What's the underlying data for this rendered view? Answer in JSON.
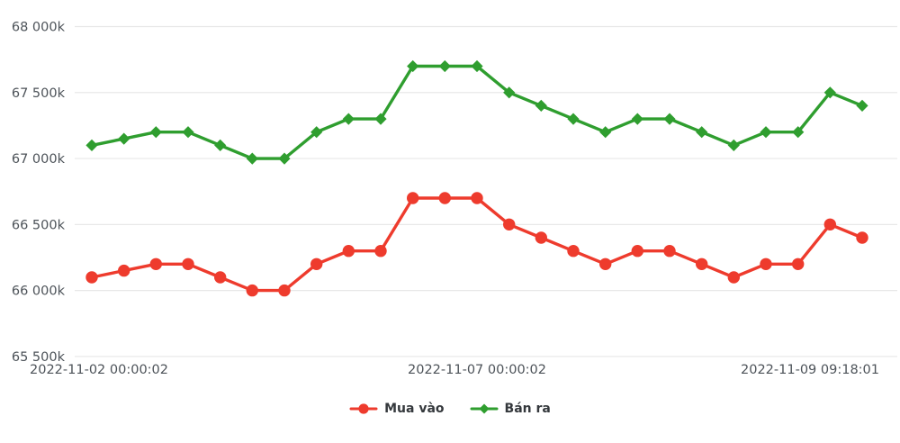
{
  "chart_data": {
    "type": "line",
    "x_labels": [
      "2022-11-02 00:00:02",
      "2022-11-07 00:00:02",
      "2022-11-09 09:18:01"
    ],
    "y_ticks": [
      {
        "label": "68 000k",
        "value": 68000
      },
      {
        "label": "67 500k",
        "value": 67500
      },
      {
        "label": "67 000k",
        "value": 67000
      },
      {
        "label": "66 500k",
        "value": 66500
      },
      {
        "label": "66 000k",
        "value": 66000
      },
      {
        "label": "65 500k",
        "value": 65500
      }
    ],
    "ylim": [
      65500,
      68000
    ],
    "grid": true,
    "legend_position": "bottom",
    "colors": {
      "grid": "#e8e8e8",
      "axis_text": "#4d5359",
      "legend_text": "#34383c",
      "buy_series": "#ee3b2d",
      "sell_series": "#2f9e2f"
    },
    "series": [
      {
        "name": "Mua vào",
        "key": "mua-vao",
        "color": "#ee3b2d",
        "marker": "circle",
        "values": [
          66100,
          66150,
          66200,
          66200,
          66100,
          66000,
          66000,
          66200,
          66300,
          66300,
          66700,
          66700,
          66700,
          66500,
          66400,
          66300,
          66200,
          66300,
          66300,
          66200,
          66100,
          66200,
          66200,
          66500,
          66400
        ]
      },
      {
        "name": "Bán ra",
        "key": "ban-ra",
        "color": "#2f9e2f",
        "marker": "diamond",
        "values": [
          67100,
          67150,
          67200,
          67200,
          67100,
          67000,
          67000,
          67200,
          67300,
          67300,
          67700,
          67700,
          67700,
          67500,
          67400,
          67300,
          67200,
          67300,
          67300,
          67200,
          67100,
          67200,
          67200,
          67500,
          67400
        ]
      }
    ]
  }
}
